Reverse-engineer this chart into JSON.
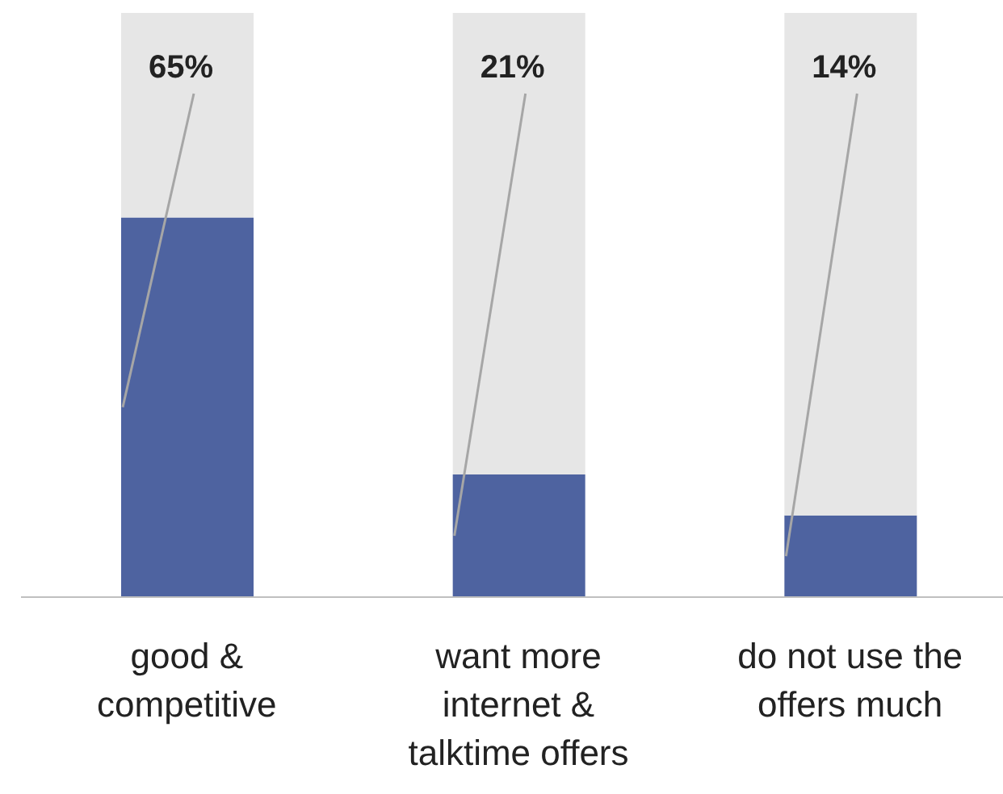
{
  "chart_data": {
    "type": "bar",
    "stacked": true,
    "categories": [
      "good & competitive",
      "want more internet & talktime offers",
      "do not use the offers much"
    ],
    "series": [
      {
        "color": "#4e63a0",
        "values": [
          65,
          21,
          14
        ],
        "value_labels": [
          "65%",
          "21%",
          "14%"
        ]
      },
      {
        "color": "#e6e6e6",
        "values": [
          35,
          79,
          86
        ]
      }
    ],
    "ylim": [
      0,
      100
    ],
    "tick_labels": "x"
  }
}
